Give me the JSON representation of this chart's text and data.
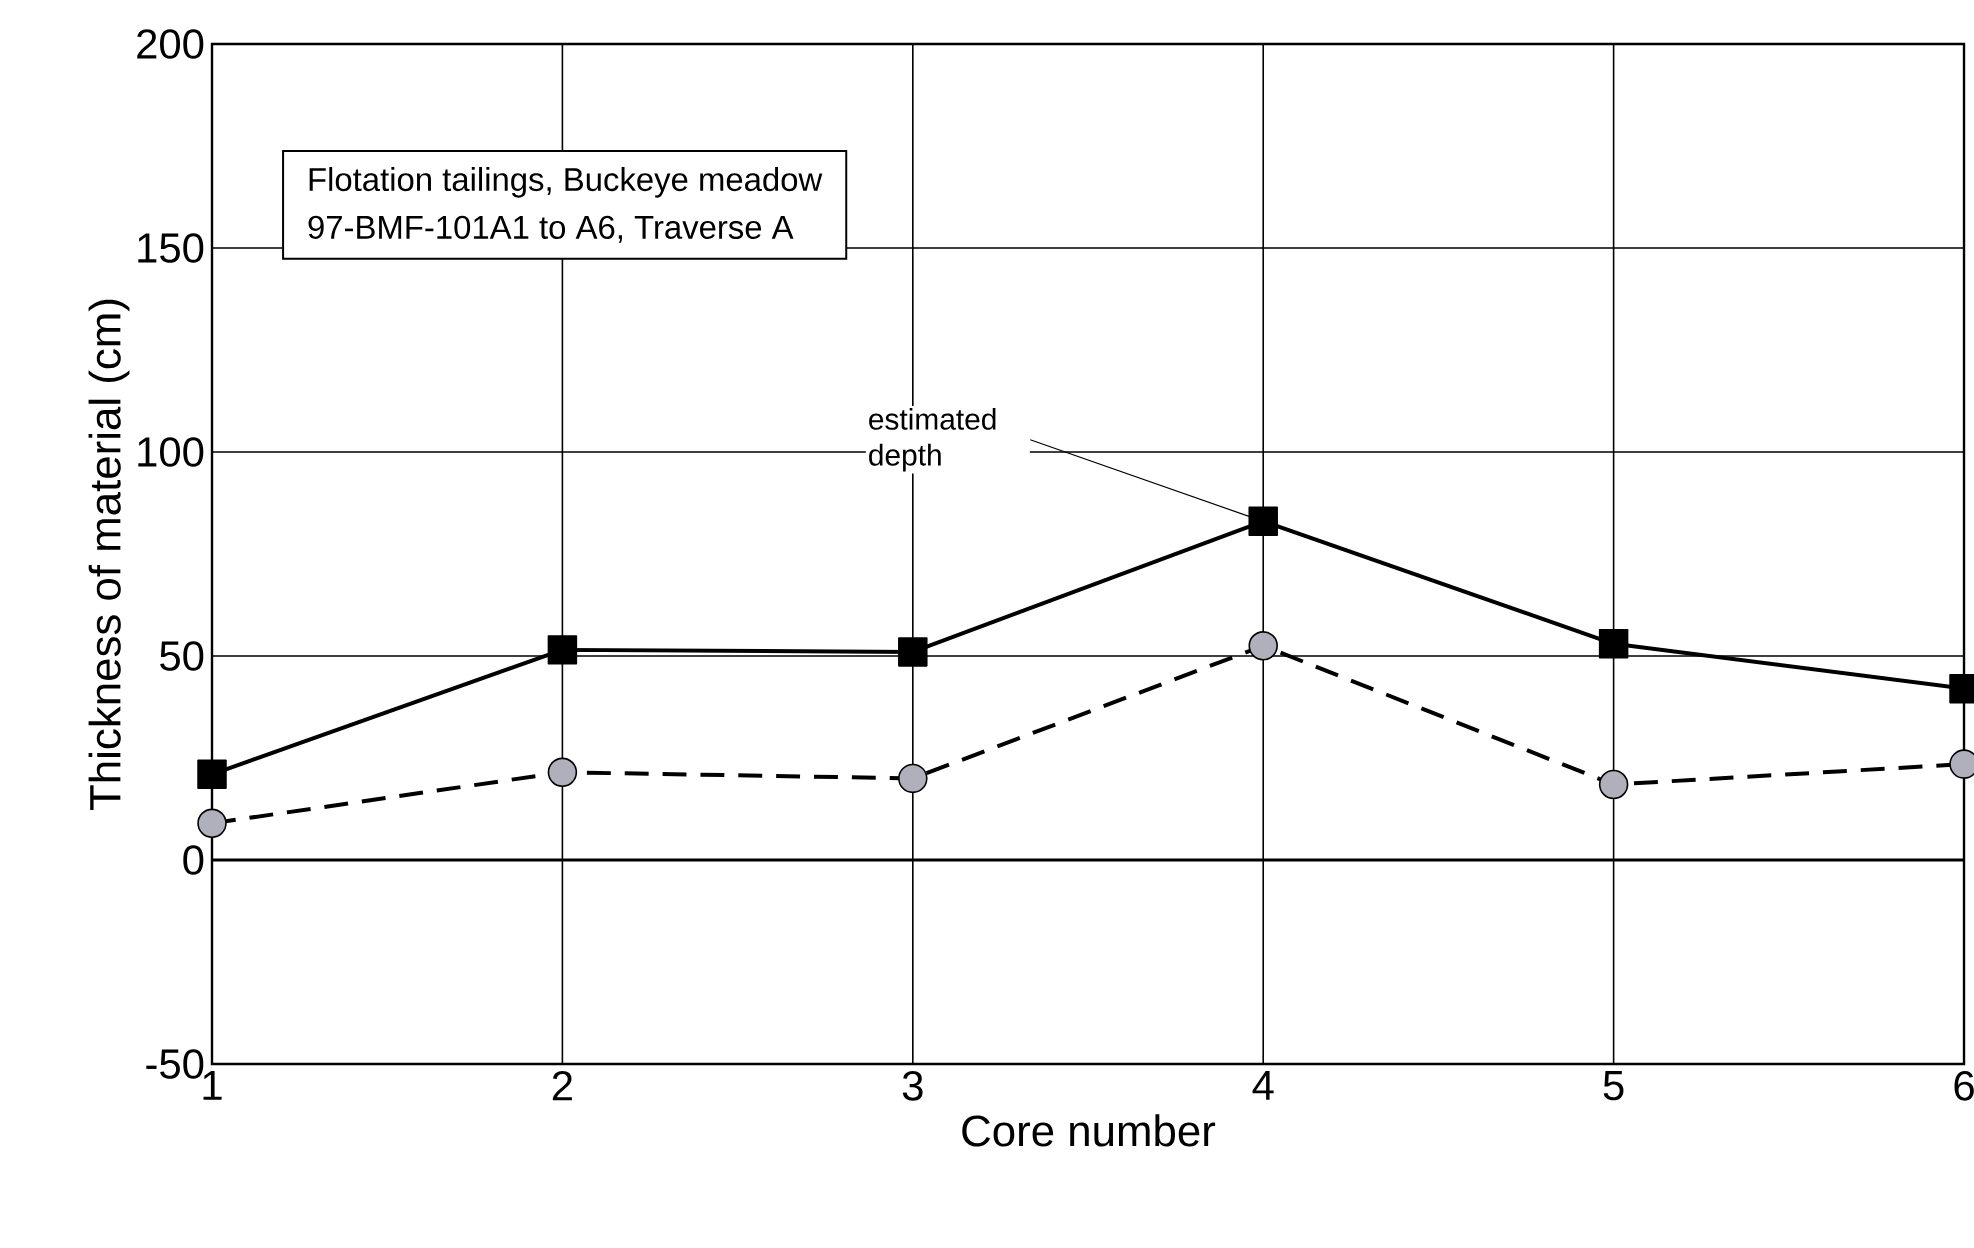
{
  "chart_data": {
    "type": "line",
    "title": "Flotation tailings, Buckeye meadow",
    "subtitle": "97-BMF-101A1 to A6, Traverse A",
    "xlabel": "Core number",
    "ylabel": "Thickness of material (cm)",
    "x": [
      1,
      2,
      3,
      4,
      5,
      6
    ],
    "series": [
      {
        "color": "#000000",
        "marker": "square",
        "line_style": "solid",
        "values": [
          21,
          51.5,
          51,
          83,
          53,
          42
        ]
      },
      {
        "color": "#b0b0bc",
        "marker": "circle",
        "line_style": "dashed",
        "values": [
          9,
          21.5,
          20,
          52.5,
          18.5,
          23.5
        ]
      }
    ],
    "xlim": [
      1,
      6
    ],
    "xticks": [
      1,
      2,
      3,
      4,
      5,
      6
    ],
    "ylim": [
      -50,
      200
    ],
    "yticks": [
      -50,
      0,
      50,
      100,
      150,
      200
    ],
    "grid": true,
    "ref_lines": [
      {
        "axis": "y",
        "value": 0,
        "color": "#000000"
      }
    ],
    "annotations": [
      {
        "text": "estimated depth",
        "x": 4,
        "y": 83
      }
    ]
  }
}
